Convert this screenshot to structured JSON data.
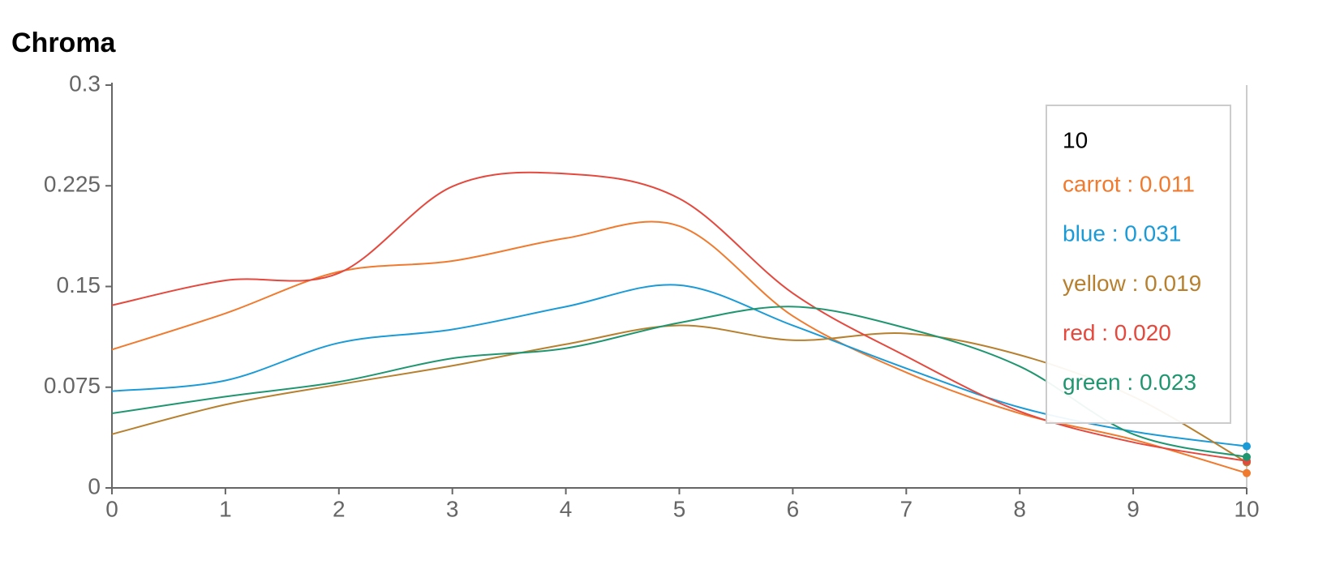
{
  "chart_data": {
    "type": "line",
    "title": "Chroma",
    "x": [
      0,
      1,
      2,
      3,
      4,
      5,
      6,
      7,
      8,
      9,
      10
    ],
    "xlim": [
      0,
      10
    ],
    "xticks": [
      0,
      1,
      2,
      3,
      4,
      5,
      6,
      7,
      8,
      9,
      10
    ],
    "ylim": [
      0,
      0.3
    ],
    "yticks": [
      0,
      0.075,
      0.15,
      0.225,
      0.3
    ],
    "series": [
      {
        "name": "carrot",
        "color": "#f07a2e",
        "values": [
          0.103,
          0.13,
          0.161,
          0.169,
          0.186,
          0.195,
          0.128,
          0.086,
          0.0555,
          0.036,
          0.011
        ]
      },
      {
        "name": "blue",
        "color": "#1a9bd7",
        "values": [
          0.072,
          0.08,
          0.108,
          0.118,
          0.135,
          0.151,
          0.121,
          0.089,
          0.06,
          0.042,
          0.031
        ]
      },
      {
        "name": "yellow",
        "color": "#b7802f",
        "values": [
          0.04,
          0.062,
          0.077,
          0.091,
          0.107,
          0.121,
          0.11,
          0.115,
          0.099,
          0.068,
          0.019
        ]
      },
      {
        "name": "red",
        "color": "#e5483d",
        "values": [
          0.136,
          0.1545,
          0.16,
          0.2245,
          0.234,
          0.2155,
          0.145,
          0.098,
          0.057,
          0.034,
          0.02
        ]
      },
      {
        "name": "green",
        "color": "#1f9670",
        "values": [
          0.0555,
          0.068,
          0.079,
          0.0965,
          0.104,
          0.123,
          0.135,
          0.119,
          0.0905,
          0.04,
          0.023
        ]
      }
    ],
    "tooltip": {
      "title": "10",
      "entries": [
        "carrot : 0.011",
        "blue : 0.031",
        "yellow : 0.019",
        "red : 0.020",
        "green : 0.023"
      ]
    }
  }
}
